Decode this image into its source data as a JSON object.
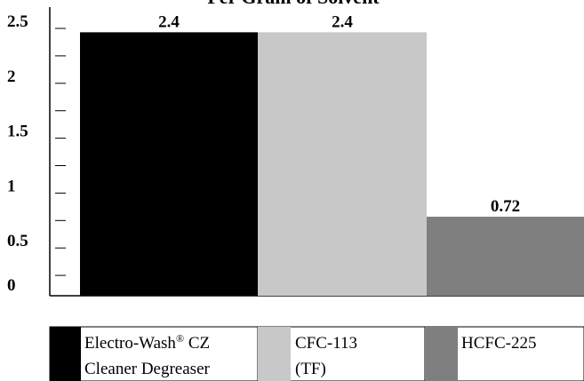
{
  "chart_data": {
    "type": "bar",
    "title": "Per Gram of Solvent",
    "categories": [
      "Electro-Wash® CZ Cleaner Degreaser",
      "CFC-113 (TF)",
      "HCFC-225"
    ],
    "values": [
      2.4,
      2.4,
      0.72
    ],
    "value_labels": [
      "2.4",
      "2.4",
      "0.72"
    ],
    "colors": [
      "#000000",
      "#c8c8c8",
      "#7f7f7f"
    ],
    "ylim": [
      0,
      2.5
    ],
    "yticks": [
      "2.5",
      "2",
      "1.5",
      "1",
      "0.5",
      "0"
    ],
    "grid": false,
    "legend_position": "bottom"
  },
  "legend": [
    {
      "line1": "Electro-Wash",
      "line1_sup": "®",
      "line1_suffix": " CZ",
      "line2": "Cleaner Degreaser",
      "color": "#000000"
    },
    {
      "line1": "CFC-113",
      "line1_sup": "",
      "line1_suffix": "",
      "line2": "(TF)",
      "color": "#c8c8c8"
    },
    {
      "line1": "HCFC-225",
      "line1_sup": "",
      "line1_suffix": "",
      "line2": "",
      "color": "#7f7f7f"
    }
  ]
}
